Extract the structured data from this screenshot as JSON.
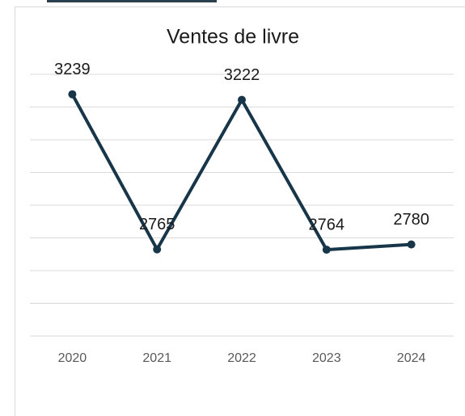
{
  "chart_data": {
    "type": "line",
    "title": "Ventes de livre",
    "categories": [
      "2020",
      "2021",
      "2022",
      "2023",
      "2024"
    ],
    "series": [
      {
        "name": "Ventes",
        "color": "#17364a",
        "values": [
          3239,
          2765,
          3222,
          2764,
          2780
        ]
      }
    ],
    "ylim": [
      2500,
      3300
    ],
    "yticks": [
      2500,
      2600,
      2700,
      2800,
      2900,
      3000,
      3100,
      3200,
      3300
    ],
    "grid": true,
    "data_labels": true
  }
}
